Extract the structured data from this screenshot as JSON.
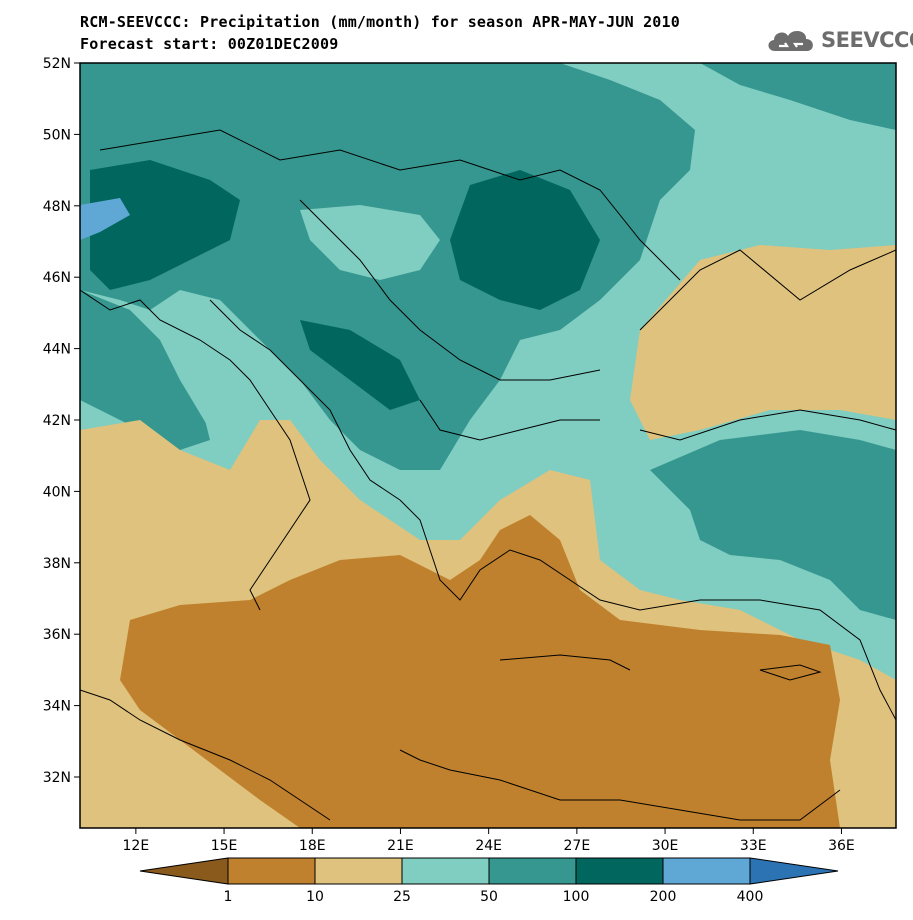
{
  "title": {
    "line1": "RCM-SEEVCCC: Precipitation (mm/month) for season APR-MAY-JUN 2010",
    "line2": "Forecast start: 00Z01DEC2009"
  },
  "logo": {
    "text": "SEEVCCC",
    "icon": "cloud-icon"
  },
  "map": {
    "lat_labels": [
      "52N",
      "50N",
      "48N",
      "46N",
      "44N",
      "42N",
      "40N",
      "38N",
      "36N",
      "34N",
      "32N"
    ],
    "lon_labels": [
      "12E",
      "15E",
      "18E",
      "21E",
      "24E",
      "27E",
      "30E",
      "33E",
      "36E"
    ],
    "lat_values": [
      52,
      50,
      48,
      46,
      44,
      42,
      40,
      38,
      36,
      34,
      32
    ],
    "lon_values": [
      12,
      15,
      18,
      21,
      24,
      27,
      30,
      33,
      36
    ]
  },
  "colorbar": {
    "labels": [
      "1",
      "10",
      "25",
      "50",
      "100",
      "200",
      "400"
    ],
    "bins": [
      {
        "name": "below-1",
        "color": "#8a5a1c"
      },
      {
        "name": "1-10",
        "color": "#bf812d"
      },
      {
        "name": "10-25",
        "color": "#dfc27d"
      },
      {
        "name": "25-50",
        "color": "#80cdc1"
      },
      {
        "name": "50-100",
        "color": "#35978f"
      },
      {
        "name": "100-200",
        "color": "#01665e"
      },
      {
        "name": "200-400",
        "color": "#5fa8d6"
      },
      {
        "name": "above-400",
        "color": "#2c73b4"
      }
    ]
  },
  "colors": {
    "dry_dark": "#bf812d",
    "dry_light": "#dfc27d",
    "wet_light": "#80cdc1",
    "wet_mid": "#35978f",
    "wet_dark": "#01665e",
    "very_wet": "#5fa8d6"
  }
}
